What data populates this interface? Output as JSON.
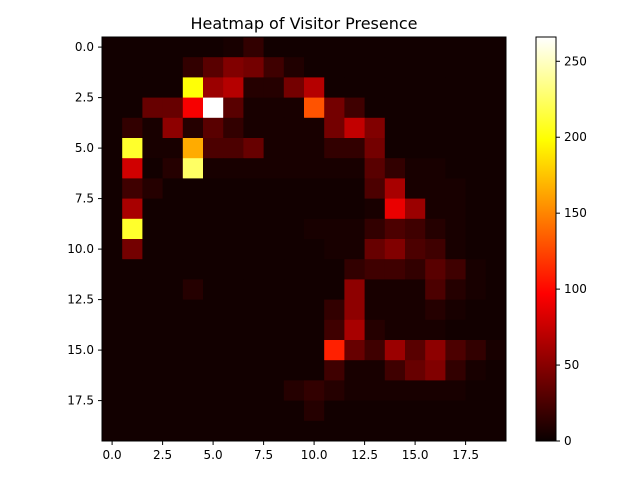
{
  "chart_data": {
    "type": "heatmap",
    "title": "Heatmap of Visitor Presence",
    "xlabel": "",
    "ylabel": "",
    "rows": 20,
    "cols": 20,
    "x_ticks": [
      0.0,
      2.5,
      5.0,
      7.5,
      10.0,
      12.5,
      15.0,
      17.5
    ],
    "x_tick_labels": [
      "0.0",
      "2.5",
      "5.0",
      "7.5",
      "10.0",
      "12.5",
      "15.0",
      "17.5"
    ],
    "y_ticks": [
      0.0,
      2.5,
      5.0,
      7.5,
      10.0,
      12.5,
      15.0,
      17.5
    ],
    "y_tick_labels": [
      "0.0",
      "2.5",
      "5.0",
      "7.5",
      "10.0",
      "12.5",
      "15.0",
      "17.5"
    ],
    "colormap": "hot",
    "vmin": 0,
    "vmax": 266,
    "colorbar_ticks": [
      0,
      50,
      100,
      150,
      200,
      250
    ],
    "colorbar_tick_labels": [
      "0",
      "50",
      "100",
      "150",
      "200",
      "250"
    ],
    "values": [
      [
        3,
        3,
        3,
        3,
        3,
        3,
        5,
        15,
        3,
        3,
        3,
        3,
        3,
        3,
        3,
        3,
        3,
        3,
        3,
        3
      ],
      [
        3,
        3,
        3,
        3,
        15,
        30,
        45,
        40,
        20,
        8,
        3,
        3,
        3,
        3,
        3,
        3,
        3,
        3,
        3,
        3
      ],
      [
        3,
        3,
        3,
        3,
        200,
        55,
        65,
        10,
        10,
        40,
        65,
        3,
        3,
        3,
        3,
        3,
        3,
        3,
        3,
        3
      ],
      [
        3,
        3,
        35,
        35,
        90,
        266,
        30,
        5,
        5,
        5,
        130,
        40,
        20,
        3,
        3,
        3,
        3,
        3,
        3,
        3
      ],
      [
        3,
        15,
        5,
        50,
        10,
        30,
        15,
        5,
        5,
        5,
        5,
        40,
        70,
        45,
        3,
        3,
        3,
        3,
        3,
        3
      ],
      [
        3,
        210,
        5,
        5,
        165,
        25,
        25,
        35,
        5,
        5,
        5,
        15,
        15,
        40,
        3,
        3,
        3,
        3,
        3,
        3
      ],
      [
        3,
        75,
        3,
        10,
        225,
        5,
        5,
        5,
        5,
        5,
        5,
        5,
        5,
        30,
        15,
        5,
        5,
        3,
        3,
        3
      ],
      [
        3,
        20,
        10,
        3,
        3,
        3,
        3,
        3,
        3,
        3,
        3,
        3,
        3,
        25,
        60,
        5,
        5,
        5,
        3,
        3
      ],
      [
        3,
        60,
        3,
        3,
        3,
        3,
        3,
        3,
        3,
        3,
        3,
        3,
        3,
        5,
        85,
        55,
        5,
        5,
        3,
        3
      ],
      [
        3,
        210,
        3,
        3,
        3,
        3,
        3,
        3,
        3,
        3,
        5,
        5,
        5,
        15,
        25,
        20,
        10,
        5,
        3,
        3
      ],
      [
        3,
        40,
        3,
        3,
        3,
        3,
        3,
        3,
        3,
        3,
        3,
        5,
        5,
        35,
        45,
        25,
        20,
        5,
        3,
        3
      ],
      [
        3,
        3,
        3,
        3,
        3,
        3,
        3,
        3,
        3,
        3,
        3,
        3,
        15,
        20,
        20,
        15,
        30,
        20,
        5,
        3
      ],
      [
        3,
        3,
        3,
        3,
        10,
        3,
        3,
        3,
        3,
        3,
        3,
        3,
        50,
        5,
        5,
        5,
        25,
        10,
        5,
        3
      ],
      [
        3,
        3,
        3,
        3,
        3,
        3,
        3,
        3,
        3,
        3,
        3,
        15,
        50,
        5,
        5,
        5,
        10,
        5,
        3,
        3
      ],
      [
        3,
        3,
        3,
        3,
        3,
        3,
        3,
        3,
        3,
        3,
        3,
        20,
        60,
        10,
        5,
        5,
        5,
        3,
        3,
        3
      ],
      [
        3,
        3,
        3,
        3,
        3,
        3,
        3,
        3,
        3,
        3,
        3,
        110,
        35,
        20,
        55,
        30,
        50,
        25,
        15,
        5
      ],
      [
        3,
        3,
        3,
        3,
        3,
        3,
        3,
        3,
        3,
        3,
        3,
        20,
        5,
        5,
        20,
        35,
        45,
        15,
        5,
        3
      ],
      [
        3,
        3,
        3,
        3,
        3,
        3,
        3,
        3,
        3,
        10,
        15,
        10,
        5,
        5,
        5,
        5,
        5,
        5,
        3,
        3
      ],
      [
        3,
        3,
        3,
        3,
        3,
        3,
        3,
        3,
        3,
        3,
        10,
        3,
        3,
        3,
        3,
        3,
        3,
        3,
        3,
        3
      ],
      [
        3,
        3,
        3,
        3,
        3,
        3,
        3,
        3,
        3,
        3,
        3,
        3,
        3,
        3,
        3,
        3,
        3,
        3,
        3,
        3
      ]
    ]
  }
}
